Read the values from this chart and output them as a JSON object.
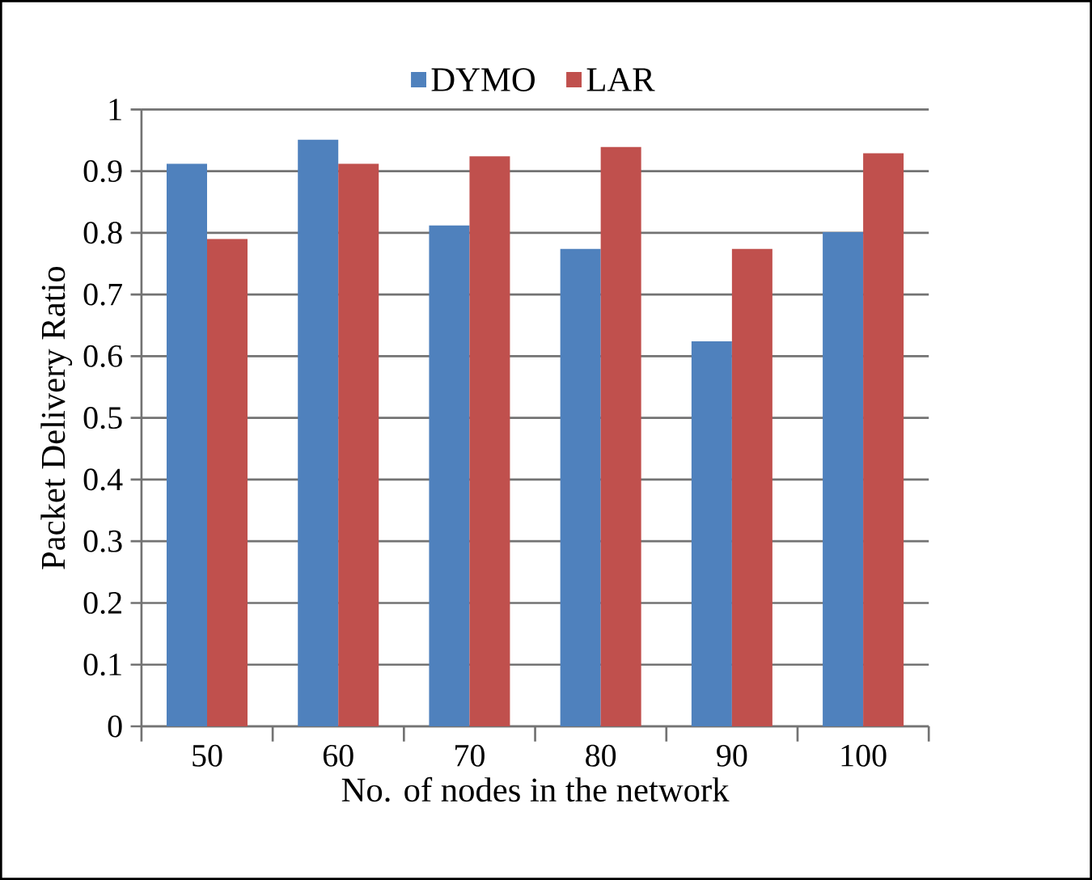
{
  "chart_data": {
    "type": "bar",
    "xlabel": "No. of nodes in the network",
    "ylabel": "Packet Delivery Ratio",
    "categories": [
      "50",
      "60",
      "70",
      "80",
      "90",
      "100"
    ],
    "series": [
      {
        "name": "DYMO",
        "color": "#4f81bd",
        "values": [
          0.912,
          0.951,
          0.812,
          0.774,
          0.624,
          0.801
        ]
      },
      {
        "name": "LAR",
        "color": "#c0504d",
        "values": [
          0.79,
          0.912,
          0.924,
          0.939,
          0.774,
          0.929
        ]
      }
    ],
    "ylim": [
      0,
      1
    ],
    "yticks": [
      0,
      0.1,
      0.2,
      0.3,
      0.4,
      0.5,
      0.6,
      0.7,
      0.8,
      0.9,
      1
    ],
    "grid": "y",
    "legend": "top"
  }
}
